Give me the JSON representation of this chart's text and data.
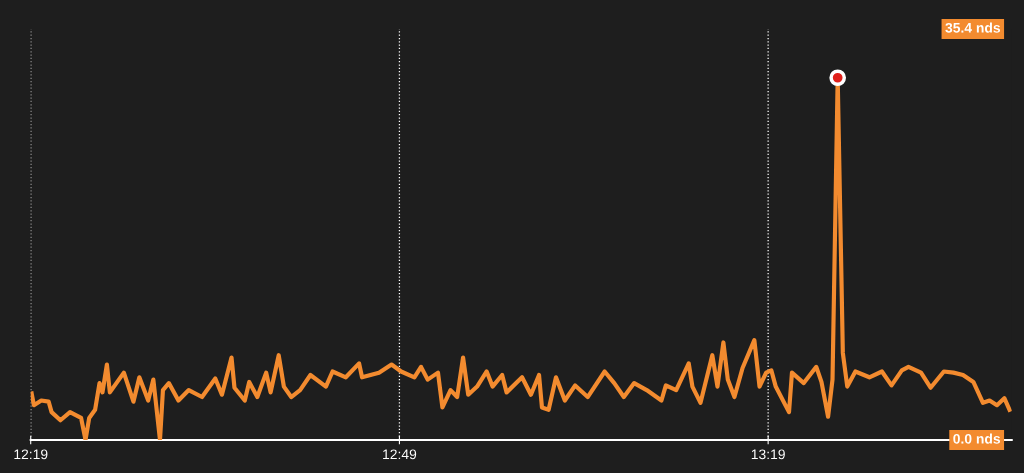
{
  "chart_data": {
    "type": "line",
    "grid": "x",
    "line_style": "solid",
    "xlim": [
      12.3167,
      13.647
    ],
    "ylim": [
      0,
      35.4
    ],
    "xticks": [
      {
        "value": 12.3167,
        "label": "12:19"
      },
      {
        "value": 12.8167,
        "label": "12:49"
      },
      {
        "value": 13.3167,
        "label": "13:19"
      }
    ],
    "yticks": [
      {
        "value": 0,
        "label": "0.0 nds"
      },
      {
        "value": 35.4,
        "label": "35.4 nds"
      }
    ],
    "series": [
      {
        "color": "#f38b2f",
        "marker": "none",
        "x": [
          12.318,
          12.321,
          12.331,
          12.341,
          12.345,
          12.357,
          12.37,
          12.385,
          12.391,
          12.396,
          12.404,
          12.41,
          12.414,
          12.42,
          12.424,
          12.443,
          12.456,
          12.464,
          12.476,
          12.483,
          12.492,
          12.496,
          12.504,
          12.517,
          12.531,
          12.549,
          12.567,
          12.576,
          12.589,
          12.593,
          12.607,
          12.613,
          12.624,
          12.636,
          12.642,
          12.653,
          12.66,
          12.67,
          12.682,
          12.696,
          12.717,
          12.726,
          12.744,
          12.762,
          12.766,
          12.789,
          12.806,
          12.819,
          12.837,
          12.846,
          12.855,
          12.869,
          12.875,
          12.886,
          12.895,
          12.903,
          12.91,
          12.922,
          12.935,
          12.943,
          12.956,
          12.962,
          12.983,
          12.995,
          13.006,
          13.01,
          13.019,
          13.029,
          13.041,
          13.055,
          13.072,
          13.095,
          13.108,
          13.121,
          13.135,
          13.152,
          13.172,
          13.178,
          13.192,
          13.209,
          13.214,
          13.225,
          13.241,
          13.248,
          13.256,
          13.262,
          13.271,
          13.282,
          13.298,
          13.305,
          13.314,
          13.321,
          13.327,
          13.345,
          13.349,
          13.365,
          13.382,
          13.389,
          13.398,
          13.404,
          13.411,
          13.418,
          13.424,
          13.435,
          13.454,
          13.471,
          13.484,
          13.498,
          13.507,
          13.524,
          13.537,
          13.555,
          13.568,
          13.581,
          13.595,
          13.608,
          13.617,
          13.627,
          13.637,
          13.644
        ],
        "values": [
          4.0,
          3.0,
          3.4,
          3.3,
          2.4,
          1.7,
          2.4,
          1.9,
          0,
          1.9,
          2.6,
          4.9,
          4.1,
          6.5,
          4.1,
          5.8,
          3.3,
          5.4,
          3.4,
          5.2,
          0,
          4.3,
          4.9,
          3.4,
          4.3,
          3.7,
          5.3,
          3.9,
          7.1,
          4.5,
          3.4,
          5.0,
          3.7,
          5.8,
          4.1,
          7.3,
          4.6,
          3.7,
          4.3,
          5.6,
          4.6,
          5.9,
          5.4,
          6.6,
          5.4,
          5.8,
          6.5,
          5.9,
          5.4,
          6.3,
          5.2,
          5.8,
          2.8,
          4.3,
          3.7,
          7.1,
          3.9,
          4.6,
          5.9,
          4.6,
          5.6,
          4.1,
          5.4,
          3.9,
          5.6,
          2.8,
          2.6,
          5.4,
          3.4,
          4.7,
          3.7,
          5.9,
          4.9,
          3.7,
          4.9,
          4.3,
          3.4,
          4.7,
          4.3,
          6.6,
          4.6,
          3.2,
          7.3,
          4.6,
          8.4,
          5.2,
          3.7,
          6.2,
          8.6,
          4.6,
          5.8,
          6.0,
          4.6,
          2.4,
          5.8,
          4.9,
          6.3,
          5.0,
          2.0,
          5.2,
          31.2,
          7.5,
          4.6,
          5.9,
          5.4,
          5.9,
          4.7,
          6.0,
          6.3,
          5.8,
          4.5,
          5.9,
          5.8,
          5.6,
          5.0,
          3.2,
          3.4,
          3.0,
          3.6,
          2.6
        ]
      },
      {
        "type": "scatter",
        "marker": "circle",
        "color": "#e0201b",
        "x": [
          13.411
        ],
        "values": [
          31.2
        ]
      }
    ]
  }
}
